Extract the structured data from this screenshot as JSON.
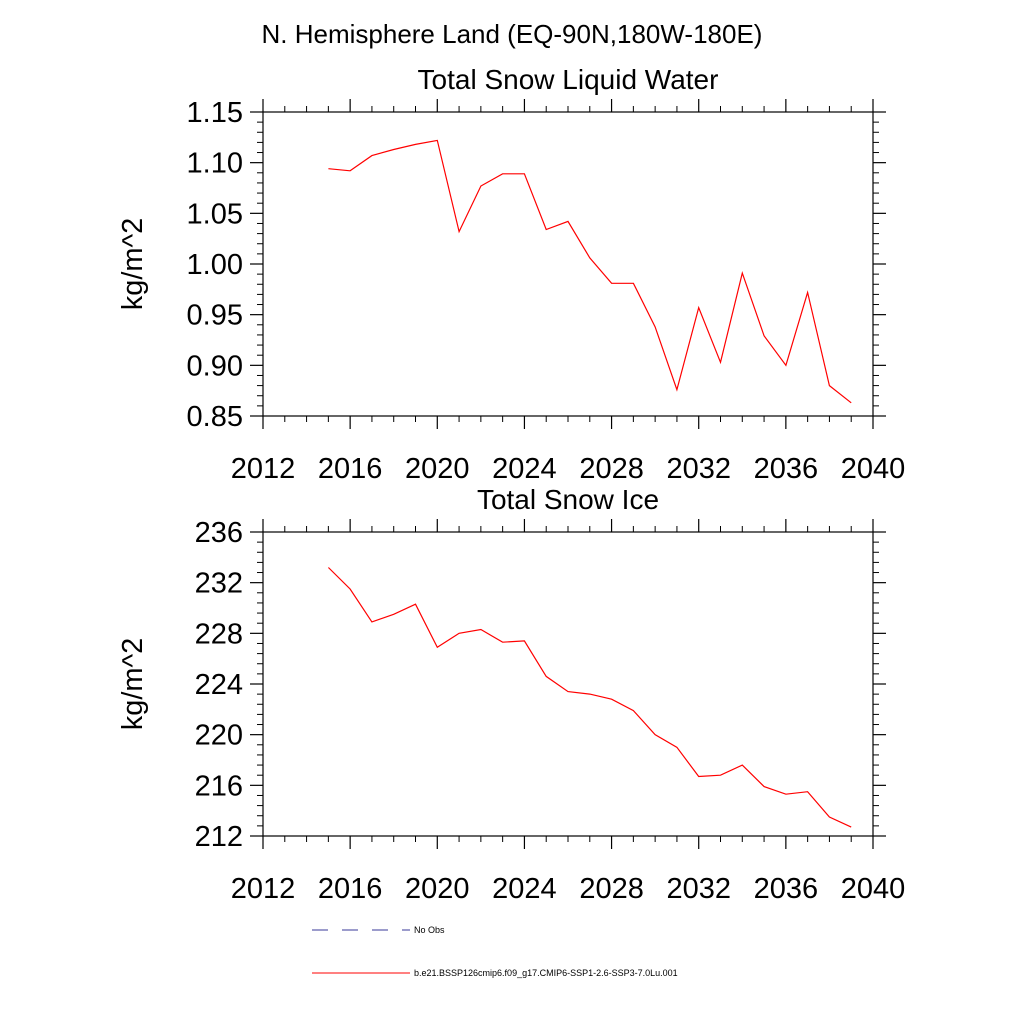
{
  "figure": {
    "title": "N. Hemisphere Land (EQ-90N,180W-180E)"
  },
  "legend": {
    "items": [
      {
        "label": "No Obs",
        "color": "#3a3a9a",
        "dash": "dashed"
      },
      {
        "label": "b.e21.BSSP126cmip6.f09_g17.CMIP6-SSP1-2.6-SSP3-7.0Lu.001",
        "color": "#ff0000",
        "dash": "solid"
      }
    ]
  },
  "chart_data": [
    {
      "type": "line",
      "title": "Total Snow Liquid Water",
      "xlabel": "",
      "ylabel": "kg/m^2",
      "xlim": [
        2012,
        2040
      ],
      "ylim": [
        0.85,
        1.15
      ],
      "xticks": [
        "2012",
        "2016",
        "2020",
        "2024",
        "2028",
        "2032",
        "2036",
        "2040"
      ],
      "yticks": [
        "0.85",
        "0.90",
        "0.95",
        "1.00",
        "1.05",
        "1.10",
        "1.15"
      ],
      "grid": false,
      "series": [
        {
          "name": "b.e21.BSSP126cmip6.f09_g17.CMIP6-SSP1-2.6-SSP3-7.0Lu.001",
          "color": "#ff0000",
          "x": [
            2015,
            2016,
            2017,
            2018,
            2019,
            2020,
            2021,
            2022,
            2023,
            2024,
            2025,
            2026,
            2027,
            2028,
            2029,
            2030,
            2031,
            2032,
            2033,
            2034,
            2035,
            2036,
            2037,
            2038,
            2039
          ],
          "values": [
            1.094,
            1.092,
            1.107,
            1.113,
            1.118,
            1.122,
            1.032,
            1.077,
            1.089,
            1.089,
            1.034,
            1.042,
            1.006,
            0.981,
            0.981,
            0.938,
            0.876,
            0.957,
            0.903,
            0.991,
            0.929,
            0.9,
            0.972,
            0.88,
            0.863
          ]
        }
      ]
    },
    {
      "type": "line",
      "title": "Total Snow Ice",
      "xlabel": "",
      "ylabel": "kg/m^2",
      "xlim": [
        2012,
        2040
      ],
      "ylim": [
        212,
        236
      ],
      "xticks": [
        "2012",
        "2016",
        "2020",
        "2024",
        "2028",
        "2032",
        "2036",
        "2040"
      ],
      "yticks": [
        "212",
        "216",
        "220",
        "224",
        "228",
        "232",
        "236"
      ],
      "grid": false,
      "series": [
        {
          "name": "b.e21.BSSP126cmip6.f09_g17.CMIP6-SSP1-2.6-SSP3-7.0Lu.001",
          "color": "#ff0000",
          "x": [
            2015,
            2016,
            2017,
            2018,
            2019,
            2020,
            2021,
            2022,
            2023,
            2024,
            2025,
            2026,
            2027,
            2028,
            2029,
            2030,
            2031,
            2032,
            2033,
            2034,
            2035,
            2036,
            2037,
            2038,
            2039
          ],
          "values": [
            233.2,
            231.5,
            228.9,
            229.5,
            230.3,
            226.9,
            228.0,
            228.3,
            227.3,
            227.4,
            224.6,
            223.4,
            223.2,
            222.8,
            221.9,
            220.0,
            219.0,
            216.7,
            216.8,
            217.6,
            215.9,
            215.3,
            215.5,
            213.5,
            212.7
          ]
        }
      ]
    }
  ]
}
